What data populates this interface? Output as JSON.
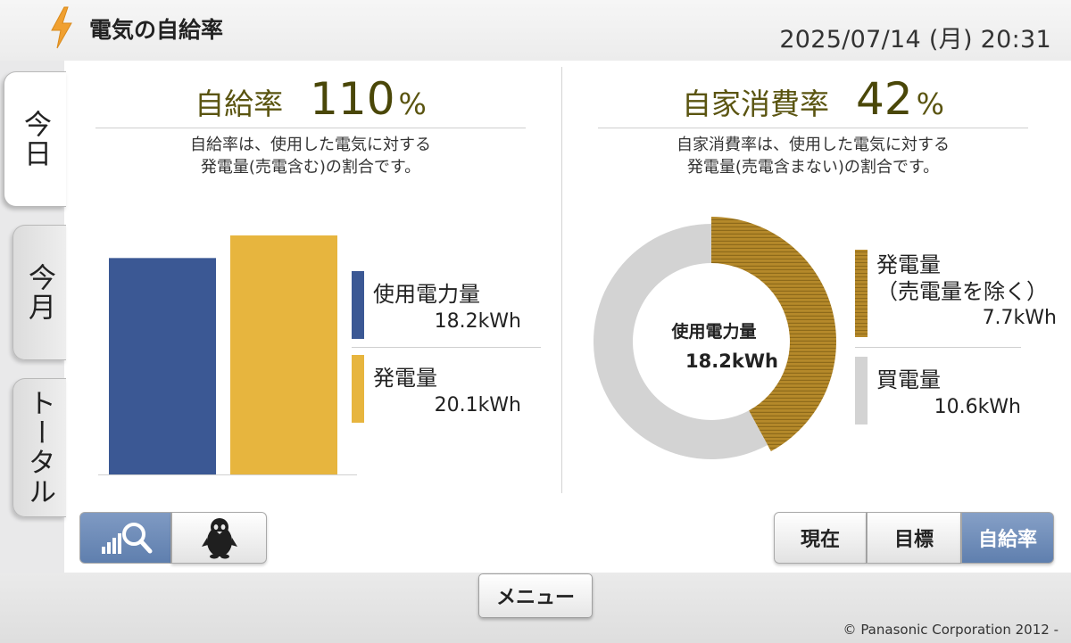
{
  "header": {
    "title": "電気の自給率",
    "datetime": "2025/07/14 (月) 20:31",
    "logo_icon": "lightning-bolt-icon"
  },
  "side_tabs": [
    {
      "label": "今日",
      "active": true
    },
    {
      "label": "今月",
      "active": false
    },
    {
      "label": "トータル",
      "active": false
    }
  ],
  "self_sufficiency": {
    "label": "自給率",
    "value": "110",
    "unit": "%",
    "description_line1": "自給率は、使用した電気に対する",
    "description_line2": "発電量(売電含む)の割合です。"
  },
  "self_consumption": {
    "label": "自家消費率",
    "value": "42",
    "unit": "%",
    "description_line1": "自家消費率は、使用した電気に対する",
    "description_line2": "発電量(売電含まない)の割合です。"
  },
  "chart_data": [
    {
      "type": "bar",
      "categories": [
        "使用電力量",
        "発電量"
      ],
      "values": [
        18.2,
        20.1
      ],
      "colors": [
        "#3b5894",
        "#e7b53e"
      ],
      "unit": "kWh",
      "legend": [
        {
          "name": "使用電力量",
          "value": "18.2kWh"
        },
        {
          "name": "発電量",
          "value": "20.1kWh"
        }
      ]
    },
    {
      "type": "pie",
      "style": "donut",
      "center_label": "使用電力量",
      "center_value": "18.2kWh",
      "total": 18.2,
      "slices": [
        {
          "name": "発電量（売電量を除く）",
          "value": 7.7,
          "color": "#b5892a"
        },
        {
          "name": "買電量",
          "value": 10.6,
          "color": "#d3d3d3"
        }
      ],
      "legend": [
        {
          "name_line1": "発電量",
          "name_line2": "（売電量を除く）",
          "value": "7.7kWh"
        },
        {
          "name": "買電量",
          "value": "10.6kWh"
        }
      ]
    }
  ],
  "view_toggle": {
    "graph_icon": "graph-search-icon",
    "character_icon": "penguin-icon"
  },
  "segments": [
    {
      "label": "現在",
      "active": false
    },
    {
      "label": "目標",
      "active": false
    },
    {
      "label": "自給率",
      "active": true
    }
  ],
  "footer": {
    "menu_label": "メニュー",
    "copyright": "© Panasonic Corporation 2012 -"
  }
}
